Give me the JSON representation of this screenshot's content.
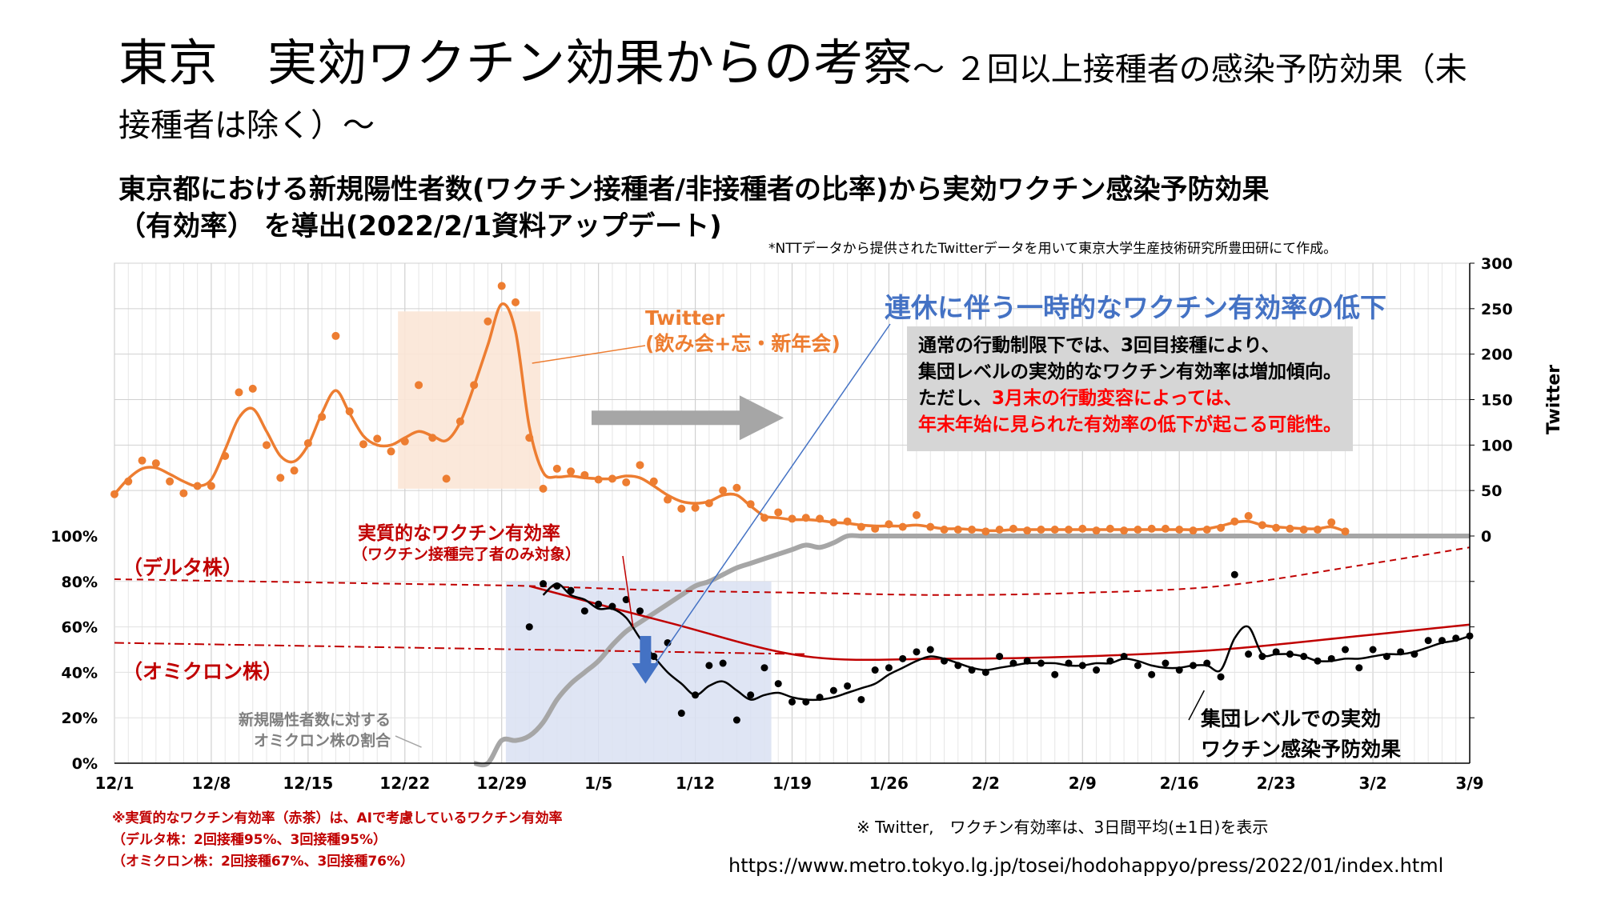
{
  "header": {
    "title_main": "東京　実効ワクチン効果からの考察",
    "title_tail": "～ ２回以上接種者の感染予防効果（未接種者は除く）～",
    "subtitle_line1": "東京都における新規陽性者数(ワクチン接種者/非接種者の比率)から実効ワクチン感染予防効果",
    "subtitle_line2": "（有効率） を導出(2022/2/1資料アップデート)",
    "source_note": "*NTTデータから提供されたTwitterデータを用いて東京大学生産技術研究所豊田研にて作成。"
  },
  "annotations": {
    "twitter_label_1": "Twitter",
    "twitter_label_2": "(飲み会+忘・新年会)",
    "callout_title": "連休に伴う一時的なワクチン有効率の低下",
    "callout_line1": "通常の行動制限下では、3回目接種により、",
    "callout_line2": "集団レベルの実効的なワクチン有効率は増加傾向。",
    "callout_line3a": "ただし、",
    "callout_line3b": "3月末の行動変容によっては、",
    "callout_line4": "年末年始に見られた有効率の低下が起こる可能性。",
    "ai_eff_label_1": "実質的なワクチン有効率",
    "ai_eff_label_2": "（ワクチン接種完了者のみ対象）",
    "delta_label": "（デルタ株）",
    "omicron_label": "（オミクロン株）",
    "omicron_share_1": "新規陽性者数に対する",
    "omicron_share_2": "オミクロン株の割合",
    "group_eff_1": "集団レベルでの実効",
    "group_eff_2": "ワクチン感染予防効果"
  },
  "footer": {
    "red_note_1": "※実質的なワクチン有効率（赤茶）は、AIで考慮しているワクチン有効率",
    "red_note_2": "（デルタ株：2回接種95%、3回接種95%）",
    "red_note_3": "（オミクロン株：2回接種67%、3回接種76%）",
    "avg_note": "※ Twitter,　ワクチン有効率は、3日間平均(±1日)を表示",
    "url": "https://www.metro.tokyo.lg.jp/tosei/hodohappyo/press/2022/01/index.html"
  },
  "colors": {
    "twitter": "#ed7d31",
    "twitter_highlight": "#fbe5d6",
    "vaccine_dip_highlight": "#d9e1f2",
    "omicron_share": "#a6a6a6",
    "ai_efficacy": "#c00000",
    "group_efficacy": "#000000",
    "callout_blue": "#4472c4"
  },
  "chart_data": {
    "type": "line",
    "x_tick_labels": [
      "12/1",
      "12/8",
      "12/15",
      "12/22",
      "12/29",
      "1/5",
      "1/12",
      "1/19",
      "1/26",
      "2/2",
      "2/9",
      "2/16",
      "2/23",
      "3/2",
      "3/9"
    ],
    "x_range_days": [
      0,
      98
    ],
    "y_left": {
      "tick_labels": [
        "0%",
        "20%",
        "40%",
        "60%",
        "80%",
        "100%"
      ],
      "range": [
        0,
        100
      ]
    },
    "y_right": {
      "label": "Twitter",
      "tick_labels": [
        "0",
        "50",
        "100",
        "150",
        "200",
        "250",
        "300"
      ],
      "range": [
        0,
        300
      ]
    },
    "x_axis_start_date": "2021-12-01",
    "series": [
      {
        "key": "twitter_points",
        "axis": "right",
        "style": "points",
        "x": [
          0,
          1,
          2,
          3,
          4,
          5,
          6,
          7,
          8,
          9,
          10,
          11,
          12,
          13,
          14,
          15,
          16,
          17,
          18,
          19,
          20,
          21,
          22,
          23,
          24,
          25,
          26,
          27,
          28,
          29,
          30,
          31,
          32,
          33,
          34,
          35,
          36,
          37,
          38,
          39,
          40,
          41,
          42,
          43,
          44,
          45,
          46,
          47,
          48,
          49,
          50,
          51,
          52,
          53,
          54,
          55,
          56,
          57,
          58,
          59,
          60,
          61,
          62,
          63,
          64,
          65,
          66,
          67,
          68,
          69,
          70,
          71,
          72,
          73,
          74,
          75,
          76,
          77,
          78,
          79,
          80,
          81,
          82,
          83,
          84,
          85,
          86,
          87,
          88,
          89
        ],
        "y": [
          46,
          60,
          83,
          80,
          60,
          47,
          55,
          55,
          88,
          158,
          162,
          100,
          64,
          72,
          102,
          131,
          220,
          137,
          101,
          107,
          93,
          104,
          166,
          108,
          63,
          126,
          166,
          236,
          275,
          257,
          108,
          52,
          74,
          71,
          67,
          62,
          63,
          59,
          78,
          60,
          40,
          30,
          31,
          36,
          50,
          53,
          35,
          20,
          26,
          19,
          20,
          19,
          15,
          16,
          10,
          8,
          13,
          10,
          23,
          10,
          7,
          7,
          7,
          5,
          7,
          8,
          6,
          7,
          7,
          7,
          8,
          6,
          8,
          6,
          7,
          8,
          8,
          7,
          6,
          7,
          9,
          16,
          22,
          12,
          9,
          8,
          7,
          7,
          15,
          5
        ]
      },
      {
        "key": "twitter_smooth",
        "axis": "right",
        "style": "smooth-line",
        "x": [
          0,
          1,
          2,
          3,
          4,
          5,
          6,
          7,
          8,
          9,
          10,
          11,
          12,
          13,
          14,
          15,
          16,
          17,
          18,
          19,
          20,
          21,
          22,
          23,
          24,
          25,
          26,
          27,
          28,
          29,
          30,
          31,
          32,
          33,
          34,
          35,
          36,
          37,
          38,
          39,
          40,
          41,
          42,
          43,
          44,
          45,
          46,
          47,
          48,
          49,
          50,
          51,
          52,
          53,
          54,
          55,
          56,
          57,
          58,
          59,
          60,
          61,
          62,
          63,
          64,
          65,
          66,
          67,
          68,
          69,
          70,
          71,
          72,
          73,
          74,
          75,
          76,
          77,
          78,
          79,
          80,
          81,
          82,
          83,
          84,
          85,
          86,
          87,
          88,
          89
        ],
        "y": [
          46,
          63,
          74,
          75,
          68,
          60,
          55,
          62,
          95,
          130,
          140,
          115,
          88,
          82,
          100,
          135,
          160,
          135,
          110,
          100,
          100,
          108,
          115,
          110,
          105,
          125,
          165,
          210,
          255,
          225,
          120,
          70,
          65,
          66,
          64,
          63,
          63,
          66,
          64,
          55,
          45,
          38,
          36,
          38,
          45,
          45,
          33,
          22,
          20,
          18,
          18,
          17,
          15,
          14,
          12,
          11,
          11,
          11,
          12,
          10,
          8,
          8,
          7,
          6,
          6,
          7,
          7,
          7,
          7,
          7,
          7,
          7,
          7,
          7,
          7,
          7,
          7,
          7,
          7,
          8,
          11,
          15,
          16,
          12,
          10,
          9,
          8,
          8,
          10,
          5
        ]
      },
      {
        "key": "omicron_share",
        "name": "新規陽性者数に対するオミクロン株の割合",
        "axis": "left",
        "style": "line",
        "x": [
          26,
          27,
          28,
          29,
          30,
          31,
          32,
          33,
          34,
          35,
          36,
          37,
          38,
          39,
          40,
          41,
          42,
          43,
          44,
          45,
          46,
          47,
          48,
          49,
          50,
          51,
          52,
          53,
          54,
          55,
          56,
          57,
          58,
          59,
          60,
          61,
          62,
          63,
          64,
          65,
          66,
          67,
          68,
          69,
          70,
          71,
          72,
          73,
          74,
          75,
          76,
          77,
          78,
          79,
          80,
          81,
          82,
          83,
          84,
          85,
          86,
          87,
          88,
          89,
          90,
          91,
          92,
          93,
          94,
          95,
          96,
          97,
          98
        ],
        "y": [
          0,
          0,
          10,
          10,
          12,
          18,
          28,
          35,
          40,
          45,
          52,
          58,
          62,
          66,
          70,
          74,
          78,
          80,
          83,
          86,
          88,
          90,
          92,
          94,
          96,
          95,
          97,
          100,
          100,
          100,
          100,
          100,
          100,
          100,
          100,
          100,
          100,
          100,
          100,
          100,
          100,
          100,
          100,
          100,
          100,
          100,
          100,
          100,
          100,
          100,
          100,
          100,
          100,
          100,
          100,
          100,
          100,
          100,
          100,
          100,
          100,
          100,
          100,
          100,
          100,
          100,
          100,
          100,
          100,
          100,
          100,
          100,
          100
        ]
      },
      {
        "key": "ai_efficacy_delta",
        "name": "（デルタ株）",
        "axis": "left",
        "style": "dashed",
        "x": [
          0,
          10,
          20,
          30,
          40,
          50,
          60,
          70,
          80,
          90,
          98
        ],
        "y": [
          81,
          80,
          79,
          78,
          76,
          75,
          74,
          75,
          78,
          87,
          95
        ]
      },
      {
        "key": "ai_efficacy_omicron",
        "name": "（オミクロン株）",
        "axis": "left",
        "style": "dash-dot",
        "x": [
          0,
          10,
          20,
          30,
          40,
          50
        ],
        "y": [
          53,
          52,
          51,
          50,
          49,
          48
        ]
      },
      {
        "key": "ai_efficacy",
        "name": "実質的なワクチン有効率",
        "axis": "left",
        "style": "solid",
        "x": [
          30,
          40,
          50,
          60,
          70,
          80,
          90,
          98
        ],
        "y": [
          78,
          62,
          47,
          46,
          47,
          50,
          56,
          61
        ]
      },
      {
        "key": "group_efficacy_points",
        "axis": "left",
        "style": "points",
        "x": [
          30,
          31,
          32,
          33,
          34,
          35,
          36,
          37,
          38,
          39,
          40,
          41,
          42,
          43,
          44,
          45,
          46,
          47,
          48,
          49,
          50,
          51,
          52,
          53,
          54,
          55,
          56,
          57,
          58,
          59,
          60,
          61,
          62,
          63,
          64,
          65,
          66,
          67,
          68,
          69,
          70,
          71,
          72,
          73,
          74,
          75,
          76,
          77,
          78,
          79,
          80,
          81,
          82,
          83,
          84,
          85,
          86,
          87,
          88,
          89,
          90,
          91,
          92,
          93,
          94,
          95,
          96,
          97,
          98
        ],
        "y": [
          60,
          79,
          78,
          76,
          67,
          70,
          69,
          72,
          67,
          47,
          53,
          22,
          30,
          43,
          44,
          19,
          30,
          42,
          35,
          27,
          27,
          29,
          32,
          34,
          28,
          41,
          42,
          46,
          49,
          50,
          45,
          43,
          41,
          40,
          47,
          44,
          45,
          44,
          39,
          44,
          43,
          41,
          45,
          47,
          43,
          39,
          44,
          41,
          43,
          44,
          38,
          83,
          48,
          47,
          49,
          48,
          47,
          45,
          46,
          50,
          42,
          50,
          47,
          49,
          48,
          54,
          54,
          55,
          56
        ]
      },
      {
        "key": "group_efficacy_smooth",
        "name": "集団レベルでの実効ワクチン感染予防効果",
        "axis": "left",
        "style": "smooth-line",
        "x": [
          31,
          32,
          33,
          34,
          35,
          36,
          37,
          38,
          39,
          40,
          41,
          42,
          43,
          44,
          45,
          46,
          47,
          48,
          49,
          50,
          51,
          52,
          53,
          54,
          55,
          56,
          57,
          58,
          59,
          60,
          61,
          62,
          63,
          64,
          65,
          66,
          67,
          68,
          69,
          70,
          71,
          72,
          73,
          74,
          75,
          76,
          77,
          78,
          79,
          80,
          81,
          82,
          83,
          84,
          85,
          86,
          87,
          88,
          89,
          90,
          91,
          92,
          93,
          94,
          95,
          96,
          97,
          98
        ],
        "y": [
          74,
          79,
          74,
          72,
          68,
          68,
          64,
          55,
          47,
          40,
          35,
          30,
          34,
          36,
          32,
          28,
          30,
          31,
          29,
          28,
          28,
          29,
          31,
          33,
          35,
          39,
          42,
          45,
          47,
          46,
          44,
          42,
          41,
          42,
          43,
          44,
          44,
          44,
          43,
          43,
          44,
          44,
          46,
          45,
          43,
          42,
          42,
          43,
          43,
          41,
          55,
          60,
          48,
          48,
          48,
          47,
          45,
          45,
          46,
          46,
          47,
          48,
          48,
          49,
          51,
          53,
          54,
          56
        ]
      }
    ]
  }
}
